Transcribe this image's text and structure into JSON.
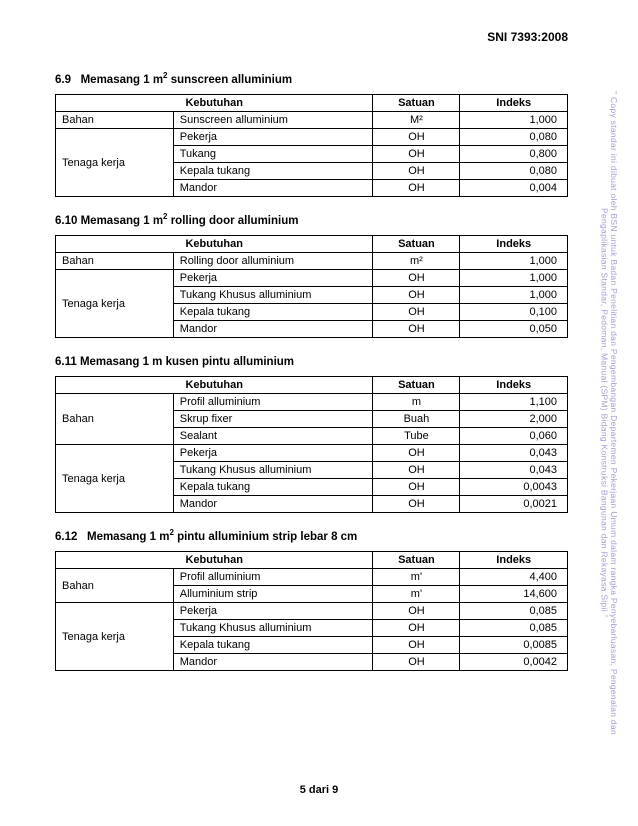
{
  "doc_id": "SNI 7393:2008",
  "footer": "5 dari 9",
  "watermark": "\" Copy standar ini dibuat oleh BSN untuk Badan Penelitian dan Pengembangan Departemen Pekerjaan Umum dalam rangka Penyebarluasan, Pengenalan dan Pengaplikasian Standar, Pedoman, Manual (SPM) Bidang Konstruksi Bangunan dan Rekayasa Sipil \"",
  "headers": {
    "h1": "Kebutuhan",
    "h2": "Satuan",
    "h3": "Indeks"
  },
  "s69": {
    "title_no": "6.9",
    "title_txt": "Memasang 1 m",
    "title_sup": "2",
    "title_rest": "  sunscreen alluminium",
    "rows": [
      {
        "cat": "Bahan",
        "item": "Sunscreen alluminium",
        "sat": "M²",
        "idx": "1,000",
        "rowspan": 1
      },
      {
        "cat": "Tenaga kerja",
        "item": "Pekerja",
        "sat": "OH",
        "idx": "0,080",
        "rowspan": 4
      },
      {
        "item": "Tukang",
        "sat": "OH",
        "idx": "0,800"
      },
      {
        "item": "Kepala tukang",
        "sat": "OH",
        "idx": "0,080"
      },
      {
        "item": "Mandor",
        "sat": "OH",
        "idx": "0,004"
      }
    ]
  },
  "s610": {
    "title_no": "6.10",
    "title_txt": "Memasang 1 m",
    "title_sup": "2",
    "title_rest": "  rolling door alluminium",
    "rows": [
      {
        "cat": "Bahan",
        "item": "Rolling door alluminium",
        "sat": "m²",
        "idx": "1,000",
        "rowspan": 1
      },
      {
        "cat": "Tenaga kerja",
        "item": "Pekerja",
        "sat": "OH",
        "idx": "1,000",
        "rowspan": 4
      },
      {
        "item": "Tukang Khusus alluminium",
        "sat": "OH",
        "idx": "1,000"
      },
      {
        "item": "Kepala tukang",
        "sat": "OH",
        "idx": "0,100"
      },
      {
        "item": "Mandor",
        "sat": "OH",
        "idx": "0,050"
      }
    ]
  },
  "s611": {
    "title_no": "6.11",
    "title_txt": "Memasang 1 m  kusen pintu alluminium",
    "rows": [
      {
        "cat": "Bahan",
        "item": "Profil alluminium",
        "sat": "m",
        "idx": "1,100",
        "rowspan": 3
      },
      {
        "item": "Skrup fixer",
        "sat": "Buah",
        "idx": "2,000"
      },
      {
        "item": "Sealant",
        "sat": "Tube",
        "idx": "0,060"
      },
      {
        "cat": "Tenaga kerja",
        "item": "Pekerja",
        "sat": "OH",
        "idx": "0,043",
        "rowspan": 4
      },
      {
        "item": "Tukang Khusus alluminium",
        "sat": "OH",
        "idx": "0,043"
      },
      {
        "item": "Kepala tukang",
        "sat": "OH",
        "idx": "0,0043"
      },
      {
        "item": "Mandor",
        "sat": "OH",
        "idx": "0,0021"
      }
    ]
  },
  "s612": {
    "title_no": "6.12",
    "title_txt": "Memasang 1 m",
    "title_sup": "2",
    "title_rest": "  pintu alluminium strip lebar 8 cm",
    "rows": [
      {
        "cat": "Bahan",
        "item": "Profil alluminium",
        "sat": "m'",
        "idx": "4,400",
        "rowspan": 2
      },
      {
        "item": "Alluminium strip",
        "sat": "m'",
        "idx": "14,600"
      },
      {
        "cat": "Tenaga kerja",
        "item": "Pekerja",
        "sat": "OH",
        "idx": "0,085",
        "rowspan": 4
      },
      {
        "item": "Tukang Khusus alluminium",
        "sat": "OH",
        "idx": "0,085"
      },
      {
        "item": "Kepala tukang",
        "sat": "OH",
        "idx": "0,0085"
      },
      {
        "item": "Mandor",
        "sat": "OH",
        "idx": "0,0042"
      }
    ]
  }
}
